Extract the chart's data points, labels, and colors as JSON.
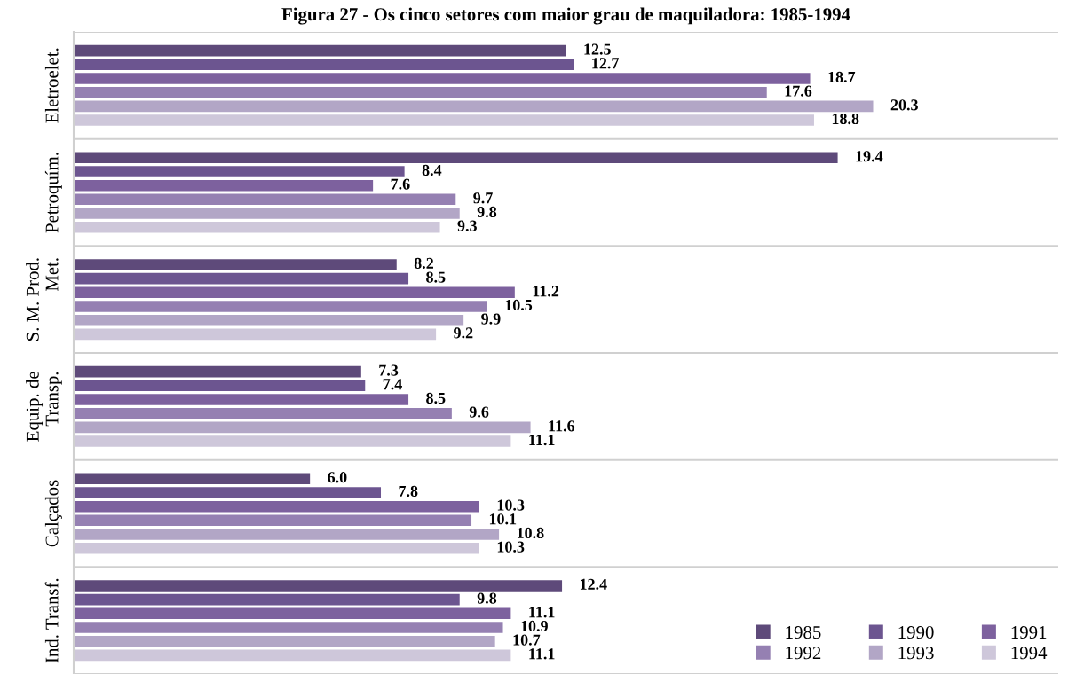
{
  "chart_data": {
    "type": "bar",
    "orientation": "horizontal",
    "title": "Figura 27 - Os cinco setores com maior grau de maquiladora: 1985-1994",
    "categories": [
      "Eletroelet.",
      "Petroquím.",
      "S. M. Prod.\nMet.",
      "Equip. de\nTransp.",
      "Calçados",
      "Ind. Transf."
    ],
    "series": [
      {
        "name": "1985",
        "color": "#5e4a7a",
        "values": [
          12.5,
          19.4,
          8.2,
          7.3,
          6.0,
          12.4
        ],
        "value_labels": [
          "12.5",
          "19.4",
          "8.2",
          "7.3",
          "6.0",
          "12.4"
        ]
      },
      {
        "name": "1990",
        "color": "#6c5590",
        "values": [
          12.7,
          8.4,
          8.5,
          7.4,
          7.8,
          9.8
        ],
        "value_labels": [
          "12.7",
          "8.4",
          "8.5",
          "7.4",
          "7.8",
          "9.8"
        ]
      },
      {
        "name": "1991",
        "color": "#7d619e",
        "values": [
          18.7,
          7.6,
          11.2,
          8.5,
          10.3,
          11.1
        ],
        "value_labels": [
          "18.7",
          "7.6",
          "11.2",
          "8.5",
          "10.3",
          "11.1"
        ]
      },
      {
        "name": "1992",
        "color": "#9580b2",
        "values": [
          17.6,
          9.7,
          10.5,
          9.6,
          10.1,
          10.9
        ],
        "value_labels": [
          "17.6",
          "9.7",
          "10.5",
          "9.6",
          "10.1",
          "10.9"
        ]
      },
      {
        "name": "1993",
        "color": "#b2a6c6",
        "values": [
          20.3,
          9.8,
          9.9,
          11.6,
          10.8,
          10.7
        ],
        "value_labels": [
          "20.3",
          "9.8",
          "9.9",
          "11.6",
          "10.8",
          "10.7"
        ]
      },
      {
        "name": "1994",
        "color": "#cec7da",
        "values": [
          18.8,
          9.3,
          9.2,
          11.1,
          10.3,
          11.1
        ],
        "value_labels": [
          "18.8",
          "9.3",
          "9.2",
          "11.1",
          "10.3",
          "11.1"
        ]
      }
    ],
    "xlim": [
      0,
      25
    ],
    "tick_labels": "y",
    "grid": "y",
    "legend": "bottom right"
  }
}
